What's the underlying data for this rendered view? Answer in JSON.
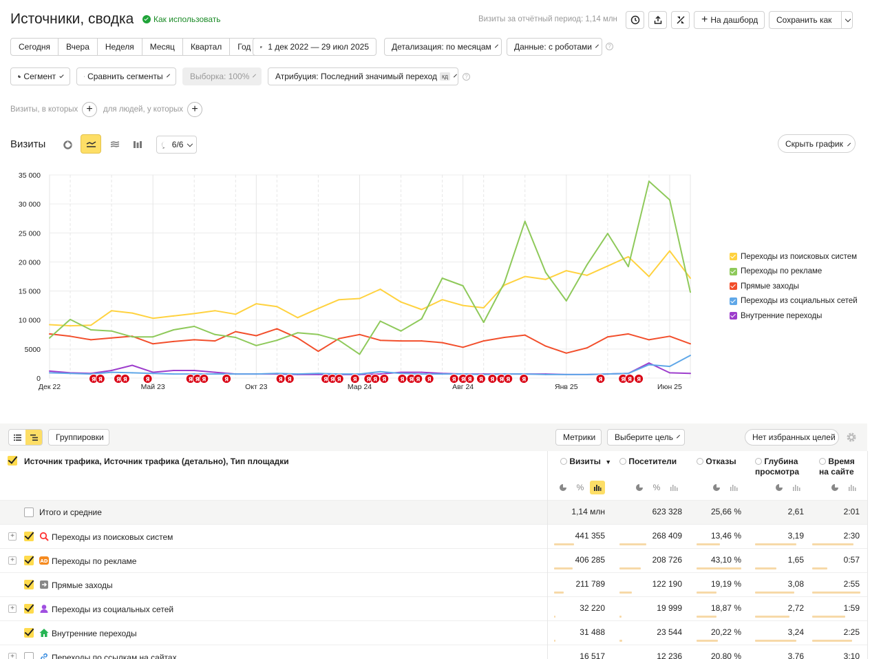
{
  "header": {
    "title": "Источники, сводка",
    "how_to_use": "Как использовать",
    "visits_period": "Визиты за отчётный период: 1,14 млн",
    "to_dashboard": "На дашборд",
    "save_as": "Сохранить как"
  },
  "periods": [
    "Сегодня",
    "Вчера",
    "Неделя",
    "Месяц",
    "Квартал",
    "Год"
  ],
  "date_range": "1 дек 2022 — 29 июл 2025",
  "detail": "Детализация: по месяцам",
  "data_mode": "Данные: с роботами",
  "segment": "Сегмент",
  "compare_segments": "Сравнить сегменты",
  "sampling": "Выборка: 100%",
  "attribution": "Атрибуция: Последний значимый переход",
  "attribution_badge": "кд",
  "filter_visits": "Визиты, в которых",
  "filter_people": "для людей, у которых",
  "chart_header": {
    "title": "Визиты",
    "annotations": "6/6",
    "hide_chart": "Скрыть график"
  },
  "chart_data": {
    "type": "line",
    "x": [
      "Дек 22",
      "Янв 23",
      "Фев 23",
      "Мар 23",
      "Апр 23",
      "Май 23",
      "Июн 23",
      "Июл 23",
      "Авг 23",
      "Сен 23",
      "Окт 23",
      "Ноя 23",
      "Дек 23",
      "Янв 24",
      "Фев 24",
      "Мар 24",
      "Апр 24",
      "Май 24",
      "Июн 24",
      "Июл 24",
      "Авг 24",
      "Сен 24",
      "Окт 24",
      "Ноя 24",
      "Дек 24",
      "Янв 25",
      "Фев 25",
      "Мар 25",
      "Апр 25",
      "Май 25",
      "Июн 25",
      "Июл 25"
    ],
    "x_tick_labels": [
      "Дек 22",
      "Май 23",
      "Окт 23",
      "Мар 24",
      "Авг 24",
      "Янв 25",
      "Июн 25"
    ],
    "y_ticks": [
      "0",
      "5000",
      "10 000",
      "15 000",
      "20 000",
      "25 000",
      "30 000",
      "35 000"
    ],
    "ylim": [
      0,
      35000
    ],
    "grid": true,
    "legend_position": "right",
    "series": [
      {
        "name": "Переходы из поисковых систем",
        "color": "#ffd23f",
        "values": [
          9200,
          9000,
          9100,
          11600,
          11200,
          10300,
          10700,
          11100,
          11600,
          11000,
          12800,
          12300,
          10400,
          12000,
          13500,
          13700,
          15300,
          13100,
          11800,
          13500,
          12500,
          12100,
          16000,
          17500,
          17000,
          18500,
          17700,
          19300,
          20900,
          17500,
          21900,
          17200
        ]
      },
      {
        "name": "Переходы по рекламе",
        "color": "#8ec95a",
        "values": [
          6900,
          10100,
          8300,
          8100,
          7100,
          7100,
          8300,
          8900,
          7500,
          7000,
          5600,
          6500,
          7800,
          7500,
          6500,
          4100,
          9800,
          8100,
          10200,
          17200,
          15900,
          9600,
          16400,
          27000,
          18200,
          13300,
          19500,
          24900,
          19200,
          33900,
          30700,
          14800
        ]
      },
      {
        "name": "Прямые заходы",
        "color": "#f24e2b",
        "values": [
          7600,
          7200,
          6600,
          6900,
          7200,
          5900,
          6300,
          6600,
          6400,
          8000,
          7300,
          8500,
          6900,
          4600,
          6800,
          7500,
          6500,
          6400,
          6400,
          6100,
          5300,
          6400,
          7000,
          7400,
          5500,
          4300,
          5200,
          7100,
          7600,
          6600,
          7200,
          5900
        ]
      },
      {
        "name": "Переходы из социальных сетей",
        "color": "#5fa7e8",
        "values": [
          900,
          800,
          700,
          1000,
          900,
          800,
          700,
          700,
          700,
          700,
          700,
          800,
          700,
          800,
          700,
          700,
          1100,
          800,
          700,
          700,
          700,
          600,
          700,
          700,
          600,
          600,
          600,
          700,
          800,
          2300,
          2000,
          3900
        ]
      },
      {
        "name": "Внутренние переходы",
        "color": "#9d3dcc",
        "values": [
          1200,
          900,
          800,
          1300,
          2200,
          1000,
          1300,
          1300,
          1000,
          700,
          700,
          700,
          600,
          600,
          600,
          600,
          700,
          1000,
          1000,
          800,
          700,
          700,
          700,
          700,
          700,
          600,
          600,
          700,
          800,
          2600,
          900,
          800
        ]
      }
    ],
    "annotation_count": 34
  },
  "table_toolbar": {
    "groupings": "Группировки",
    "metrics": "Метрики",
    "choose_goal": "Выберите цель",
    "no_fav_goals": "Нет избранных целей"
  },
  "table": {
    "dim_header": "Источник трафика, Источник трафика (детально), Тип площадки",
    "columns": [
      {
        "label": "Визиты",
        "sort": "▼"
      },
      {
        "label": "Посетители"
      },
      {
        "label": "Отказы"
      },
      {
        "label": "Глубина просмотра"
      },
      {
        "label": "Время на сайте"
      }
    ],
    "total": {
      "label": "Итого и средние",
      "values": [
        "1,14 млн",
        "623 328",
        "25,66 %",
        "2,61",
        "2:01"
      ]
    },
    "rows": [
      {
        "label": "Переходы из поисковых систем",
        "icon": "search-engine-icon",
        "values": [
          "441 355",
          "268 409",
          "13,46 %",
          "3,19",
          "2:30"
        ],
        "bars": [
          0.39,
          0.43,
          0.52,
          0.85,
          0.85
        ],
        "checked": true,
        "expandable": true
      },
      {
        "label": "Переходы по рекламе",
        "icon": "ad-icon",
        "values": [
          "406 285",
          "208 726",
          "43,10 %",
          "1,65",
          "0:57"
        ],
        "bars": [
          0.36,
          0.34,
          1.0,
          0.44,
          0.32
        ],
        "checked": true,
        "expandable": true
      },
      {
        "label": "Прямые заходы",
        "icon": "direct-icon",
        "values": [
          "211 789",
          "122 190",
          "19,19 %",
          "3,08",
          "2:55"
        ],
        "bars": [
          0.19,
          0.2,
          0.45,
          0.82,
          1.0
        ],
        "checked": true,
        "expandable": false
      },
      {
        "label": "Переходы из социальных сетей",
        "icon": "social-icon",
        "values": [
          "32 220",
          "19 999",
          "18,87 %",
          "2,72",
          "1:59"
        ],
        "bars": [
          0.03,
          0.03,
          0.44,
          0.72,
          0.68
        ],
        "checked": true,
        "expandable": true
      },
      {
        "label": "Внутренние переходы",
        "icon": "internal-icon",
        "values": [
          "31 488",
          "23 544",
          "20,22 %",
          "3,24",
          "2:25"
        ],
        "bars": [
          0.03,
          0.04,
          0.47,
          0.86,
          0.83
        ],
        "checked": true,
        "expandable": false
      },
      {
        "label": "Переходы по ссылкам на сайтах",
        "icon": "link-icon",
        "values": [
          "16 517",
          "12 236",
          "20,80 %",
          "3,76",
          "3:10"
        ],
        "bars": [
          0.01,
          0.02,
          0.48,
          1.0,
          1.0
        ],
        "checked": false,
        "expandable": true
      }
    ]
  }
}
